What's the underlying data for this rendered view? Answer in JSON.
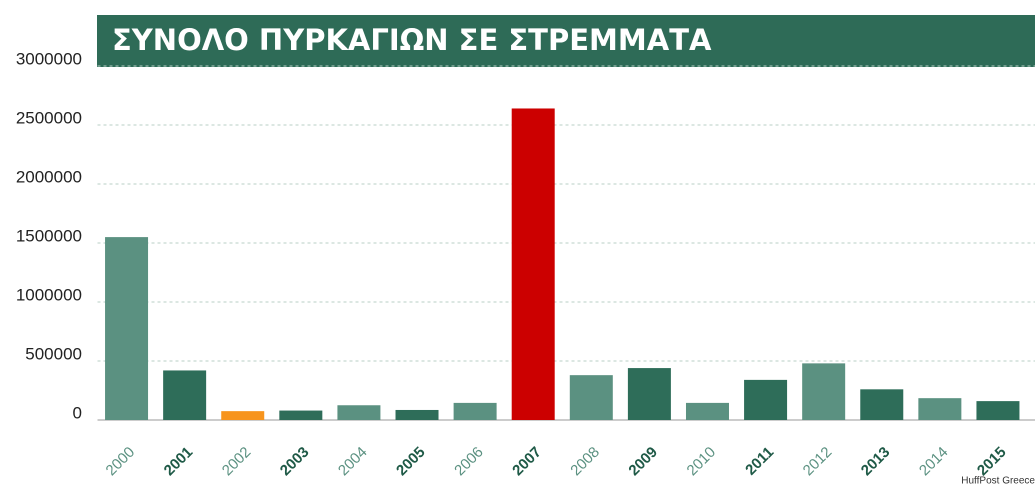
{
  "chart_data": {
    "type": "bar",
    "title": "ΣΥΝΟΛΟ ΠΥΡΚΑΓΙΩΝ ΣΕ ΣΤΡΕΜΜΑΤΑ",
    "source": "HuffPost Greece",
    "categories": [
      "2000",
      "2001",
      "2002",
      "2003",
      "2004",
      "2005",
      "2006",
      "2007",
      "2008",
      "2009",
      "2010",
      "2011",
      "2012",
      "2013",
      "2014",
      "2015"
    ],
    "values": [
      1550000,
      420000,
      75000,
      80000,
      125000,
      85000,
      145000,
      2640000,
      380000,
      440000,
      145000,
      340000,
      480000,
      260000,
      185000,
      160000
    ],
    "colors": [
      "#5b9181",
      "#2e6d59",
      "#f7941d",
      "#2e6d59",
      "#5b9181",
      "#2e6d59",
      "#5b9181",
      "#cc0000",
      "#5b9181",
      "#2e6d59",
      "#5b9181",
      "#2e6d59",
      "#5b9181",
      "#2e6d59",
      "#5b9181",
      "#2e6d59"
    ],
    "label_colors": [
      "#5b9181",
      "#1f5a47",
      "#5b9181",
      "#1f5a47",
      "#5b9181",
      "#1f5a47",
      "#5b9181",
      "#1f5a47",
      "#5b9181",
      "#1f5a47",
      "#5b9181",
      "#1f5a47",
      "#5b9181",
      "#1f5a47",
      "#5b9181",
      "#1f5a47"
    ],
    "ylim": [
      0,
      3000000
    ],
    "yticks": [
      0,
      500000,
      1000000,
      1500000,
      2000000,
      2500000,
      3000000
    ],
    "grid": true
  }
}
